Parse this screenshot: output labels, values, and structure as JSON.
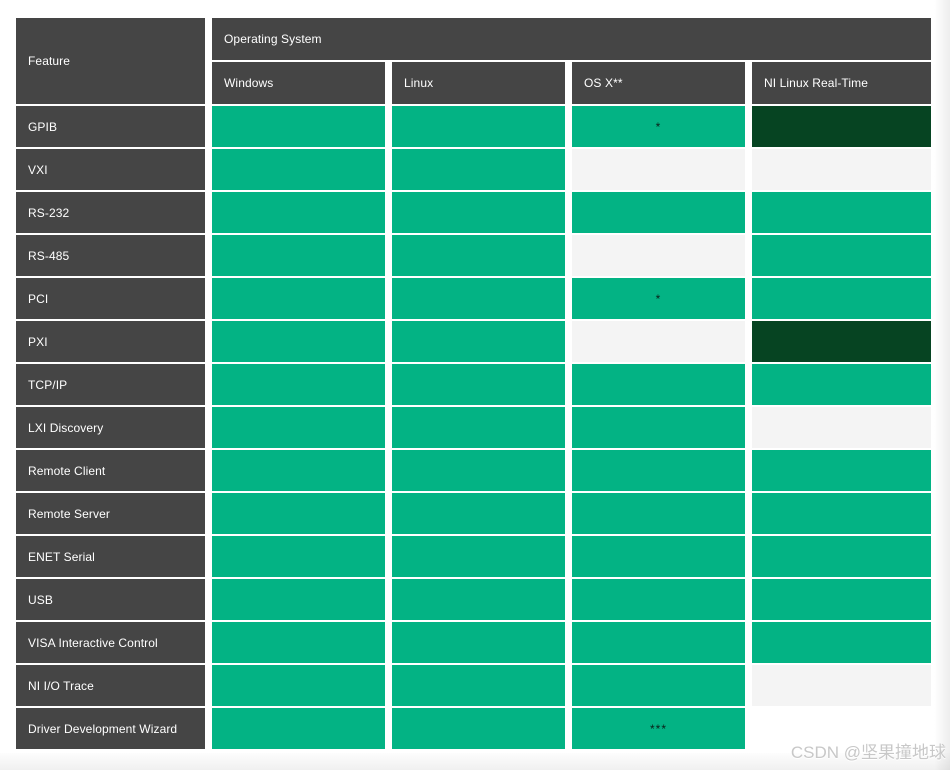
{
  "watermark": "CSDN @坚果撞地球",
  "colors": {
    "header_bg": "#454545",
    "supported_green": "#03b384",
    "dark_green": "#064422",
    "not_supported_gray": "#f4f4f4"
  },
  "table": {
    "feature_header": "Feature",
    "group_header": "Operating System",
    "columns": [
      "Windows",
      "Linux",
      "OS X**",
      "NI Linux Real-Time"
    ],
    "rows": [
      {
        "feature": "GPIB",
        "cells": [
          {
            "state": "supported"
          },
          {
            "state": "supported"
          },
          {
            "state": "supported",
            "note": "*"
          },
          {
            "state": "dark"
          }
        ]
      },
      {
        "feature": "VXI",
        "cells": [
          {
            "state": "supported"
          },
          {
            "state": "supported"
          },
          {
            "state": "empty"
          },
          {
            "state": "empty"
          }
        ]
      },
      {
        "feature": "RS-232",
        "cells": [
          {
            "state": "supported"
          },
          {
            "state": "supported"
          },
          {
            "state": "supported"
          },
          {
            "state": "supported"
          }
        ]
      },
      {
        "feature": "RS-485",
        "cells": [
          {
            "state": "supported"
          },
          {
            "state": "supported"
          },
          {
            "state": "empty"
          },
          {
            "state": "supported"
          }
        ]
      },
      {
        "feature": "PCI",
        "cells": [
          {
            "state": "supported"
          },
          {
            "state": "supported"
          },
          {
            "state": "supported",
            "note": "*"
          },
          {
            "state": "supported"
          }
        ]
      },
      {
        "feature": "PXI",
        "cells": [
          {
            "state": "supported"
          },
          {
            "state": "supported"
          },
          {
            "state": "empty"
          },
          {
            "state": "dark"
          }
        ]
      },
      {
        "feature": "TCP/IP",
        "cells": [
          {
            "state": "supported"
          },
          {
            "state": "supported"
          },
          {
            "state": "supported"
          },
          {
            "state": "supported"
          }
        ]
      },
      {
        "feature": "LXI Discovery",
        "cells": [
          {
            "state": "supported"
          },
          {
            "state": "supported"
          },
          {
            "state": "supported"
          },
          {
            "state": "empty"
          }
        ]
      },
      {
        "feature": "Remote Client",
        "cells": [
          {
            "state": "supported"
          },
          {
            "state": "supported"
          },
          {
            "state": "supported"
          },
          {
            "state": "supported"
          }
        ]
      },
      {
        "feature": "Remote Server",
        "cells": [
          {
            "state": "supported"
          },
          {
            "state": "supported"
          },
          {
            "state": "supported"
          },
          {
            "state": "supported"
          }
        ]
      },
      {
        "feature": "ENET Serial",
        "cells": [
          {
            "state": "supported"
          },
          {
            "state": "supported"
          },
          {
            "state": "supported"
          },
          {
            "state": "supported"
          }
        ]
      },
      {
        "feature": "USB",
        "cells": [
          {
            "state": "supported"
          },
          {
            "state": "supported"
          },
          {
            "state": "supported"
          },
          {
            "state": "supported"
          }
        ]
      },
      {
        "feature": "VISA Interactive Control",
        "cells": [
          {
            "state": "supported"
          },
          {
            "state": "supported"
          },
          {
            "state": "supported"
          },
          {
            "state": "supported"
          }
        ]
      },
      {
        "feature": "NI I/O Trace",
        "cells": [
          {
            "state": "supported"
          },
          {
            "state": "supported"
          },
          {
            "state": "supported"
          },
          {
            "state": "empty"
          }
        ]
      },
      {
        "feature": "Driver Development Wizard",
        "cells": [
          {
            "state": "supported"
          },
          {
            "state": "supported"
          },
          {
            "state": "supported",
            "note": "***"
          },
          {
            "state": "none"
          }
        ]
      }
    ]
  }
}
